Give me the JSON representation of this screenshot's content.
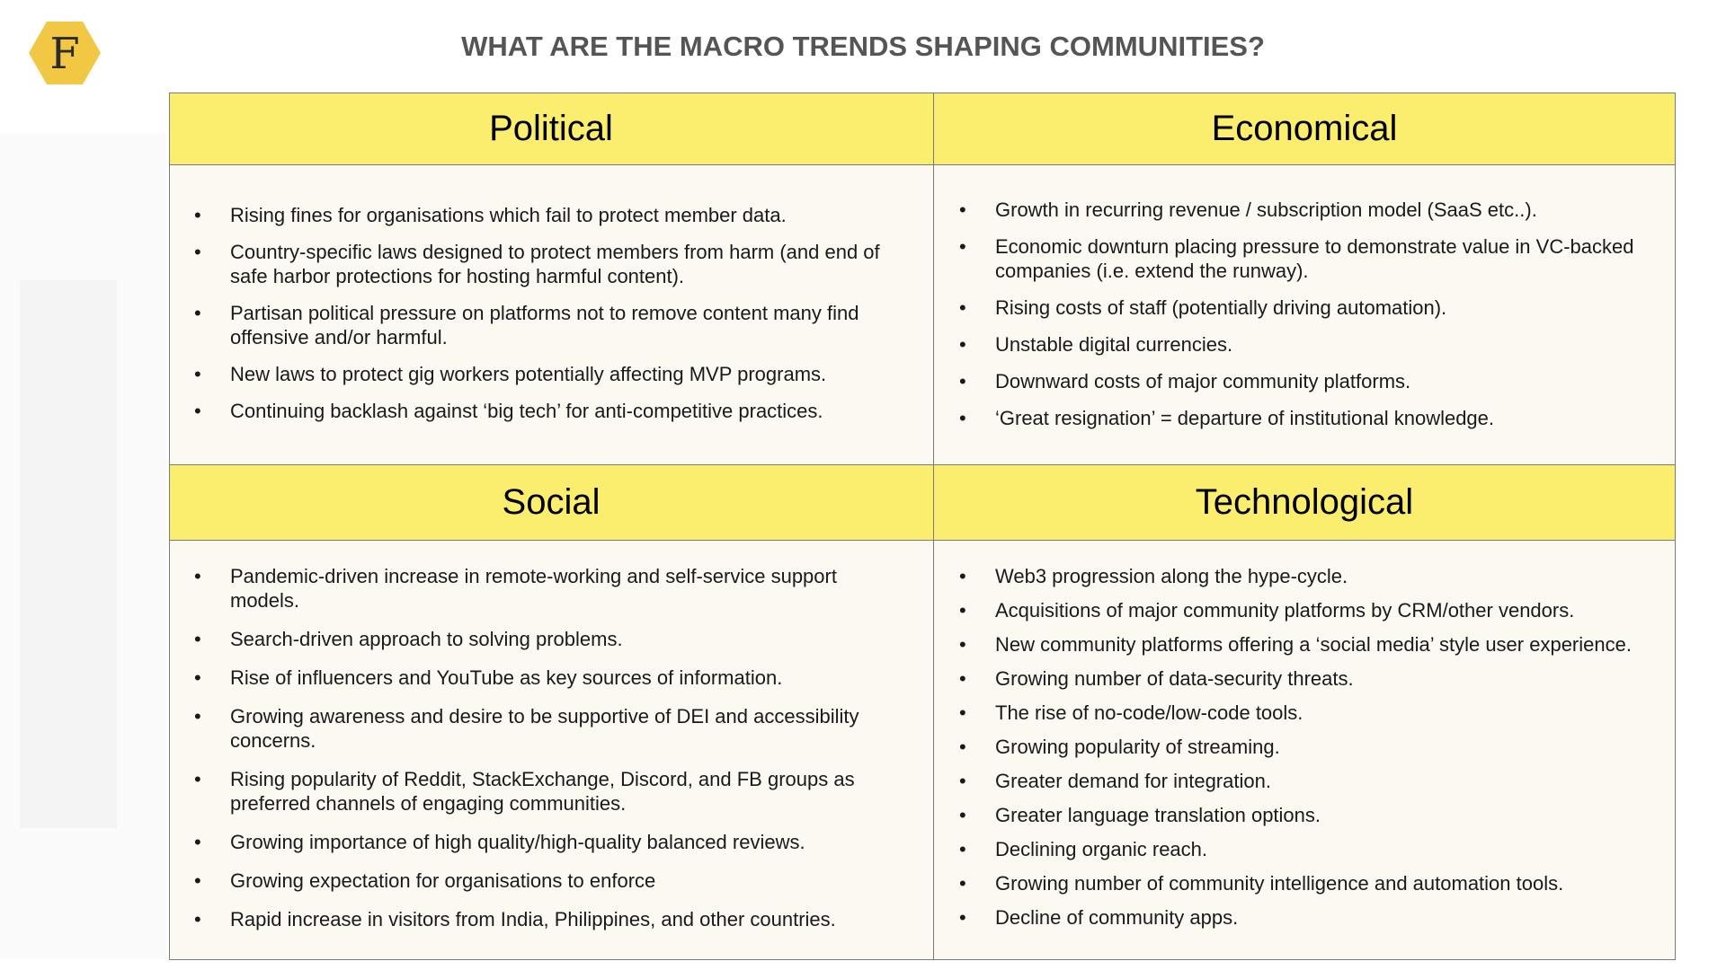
{
  "logo": {
    "letter": "F",
    "color": "#f2c744"
  },
  "title": "WHAT ARE THE MACRO TRENDS SHAPING COMMUNITIES?",
  "colors": {
    "header_fill": "#fbee6f",
    "body_fill": "#fcf9f3",
    "border": "#7a7a7a",
    "title_text": "#555555"
  },
  "quadrants": {
    "political": {
      "heading": "Political",
      "items": [
        "Rising fines for organisations which fail to protect member data.",
        "Country-specific laws designed to protect members from harm (and end of safe harbor protections for hosting harmful content).",
        "Partisan political pressure on platforms not to remove content many find offensive and/or harmful.",
        "New laws to protect gig workers potentially affecting MVP programs.",
        "Continuing backlash against ‘big tech’ for anti-competitive practices."
      ]
    },
    "economical": {
      "heading": "Economical",
      "items": [
        "Growth in recurring revenue / subscription model (SaaS etc..).",
        "Economic downturn placing pressure to demonstrate value in VC-backed companies (i.e. extend the runway).",
        "Rising costs of staff (potentially driving automation).",
        "Unstable digital currencies.",
        "Downward costs of major community platforms.",
        "‘Great resignation’ = departure of institutional knowledge."
      ]
    },
    "social": {
      "heading": "Social",
      "items": [
        "Pandemic-driven increase in remote-working and self-service support models.",
        "Search-driven approach to solving problems.",
        "Rise of influencers and YouTube as key sources of information.",
        "Growing awareness and desire to be supportive of DEI and accessibility concerns.",
        "Rising popularity of Reddit, StackExchange, Discord, and FB groups as preferred channels of engaging communities.",
        "Growing importance of high quality/high-quality balanced reviews.",
        "Growing expectation for organisations to enforce",
        "Rapid increase in visitors from India, Philippines, and other countries."
      ]
    },
    "technological": {
      "heading": "Technological",
      "items": [
        "Web3 progression along the hype-cycle.",
        "Acquisitions of major community platforms by CRM/other vendors.",
        "New community platforms offering a ‘social media’ style user experience.",
        "Growing number of data-security threats.",
        "The rise of no-code/low-code tools.",
        "Growing popularity of streaming.",
        "Greater demand for integration.",
        "Greater language translation options.",
        "Declining organic reach.",
        "Growing number of community intelligence and automation tools.",
        "Decline of community apps."
      ]
    }
  }
}
